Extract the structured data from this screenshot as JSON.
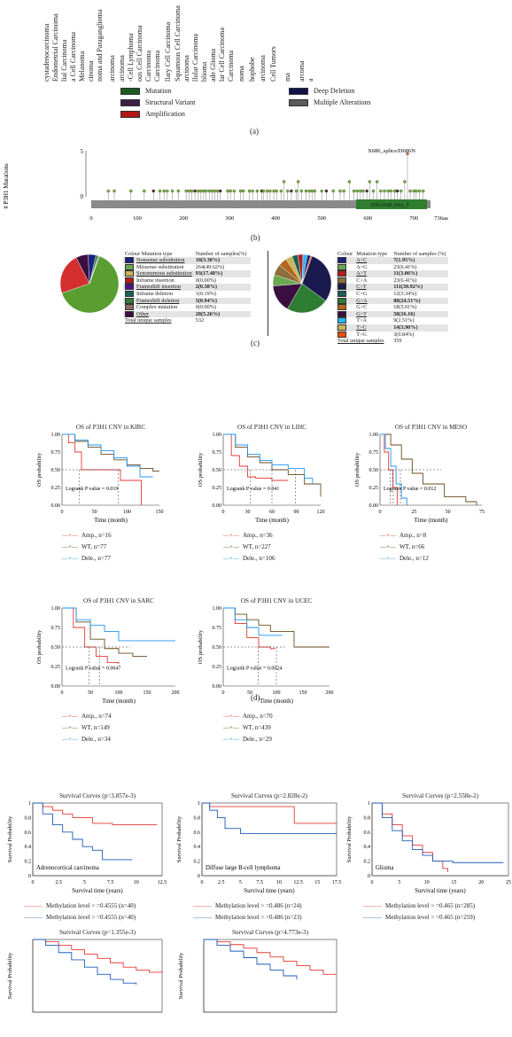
{
  "cancer_labels": [
    "cystadenocarcinoma",
    "Endometrial Carcinoma",
    "lial Carcinoma",
    "a Cell Carcinoma",
    "Melanoma",
    "cinoma",
    "noma and Paraganglioma",
    "arcinoma",
    "arcinoma",
    "-Cell Lymphoma",
    "ous Cell Carcinoma",
    "Carcinoma",
    "Carcinoma",
    "llary Cell Carcinoma",
    "Squamous Cell Carcinoma",
    "arcinoma",
    "llular Carcinoma",
    "blioma",
    "ade Glioma",
    "lar Cell Carcinoma",
    "Carcinoma",
    "noma",
    "hophobe",
    "arcinoma",
    "Cell Tumors",
    "ma",
    "arcoma",
    "a"
  ],
  "alteration_legend": [
    {
      "label": "Mutation",
      "color": "#1c5a22"
    },
    {
      "label": "Structural Variant",
      "color": "#3c1f46"
    },
    {
      "label": "Amplification",
      "color": "#b01818"
    },
    {
      "label": "Deep Deletion",
      "color": "#12124a"
    },
    {
      "label": "Multiple Alterations",
      "color": "#5a5a5a"
    }
  ],
  "panel_labels": {
    "a": "(a)",
    "b": "(b)",
    "c": "(c)",
    "d": "(d)"
  },
  "lollipop": {
    "ylabel": "# P3H1 Mutations",
    "annotation": "X686_splice/D686N",
    "domain": "2OG-FeII_Oxy_3",
    "yticks": [
      "5",
      "0"
    ],
    "xticks": [
      "0",
      "100",
      "200",
      "300",
      "400",
      "500",
      "600",
      "700",
      "736aa"
    ]
  },
  "table_left": {
    "headers": [
      "Colour Mutation type",
      "Number of samples(%)"
    ],
    "rows": [
      {
        "color": "#1a237e",
        "label": "Nonsense substitution",
        "value": "18(3.38%)"
      },
      {
        "color": "#6aa84f",
        "label": "Missense substitution",
        "value": "264(49.62%)"
      },
      {
        "color": "#c9b458",
        "label": "Synonymous substitution",
        "value": "93(17.48%)"
      },
      {
        "color": "#b71c1c",
        "label": "Inframe insertion",
        "value": "0(0.00%)"
      },
      {
        "color": "#4a148c",
        "label": "Frameshift insertion",
        "value": "2(0.38%)"
      },
      {
        "color": "#1b5e56",
        "label": "Inframe deletion",
        "value": "1(0.19%)"
      },
      {
        "color": "#2e7d32",
        "label": "Frameshift deletion",
        "value": "5(0.94%)"
      },
      {
        "color": "#8d6e63",
        "label": "Complex mutation",
        "value": "0(0.00%)"
      },
      {
        "color": "#3a0f3f",
        "label": "Other",
        "value": "28(5.26%)"
      }
    ],
    "total_label": "Total unique samples",
    "total": "532"
  },
  "table_right": {
    "headers": [
      "Colour",
      "Mutation type",
      "Number of samples (%)"
    ],
    "rows": [
      {
        "color": "#1a237e",
        "label": "A>C",
        "value": "7(1.95%)"
      },
      {
        "color": "#6aa84f",
        "label": "A>G",
        "value": "23(6.41%)"
      },
      {
        "color": "#b71c1c",
        "label": "A>T",
        "value": "11(3.06%)"
      },
      {
        "color": "#8d6e3c",
        "label": "C>A",
        "value": "23(6.41%)"
      },
      {
        "color": "#1a1a4e",
        "label": "C>T",
        "value": "111(30.92%)"
      },
      {
        "color": "#1b5e56",
        "label": "C>G",
        "value": "12(3.34%)"
      },
      {
        "color": "#2e7d32",
        "label": "G>A",
        "value": "88(24.51%)"
      },
      {
        "color": "#b5651d",
        "label": "G>C",
        "value": "18(5.01%)"
      },
      {
        "color": "#3a0f3f",
        "label": "G>T",
        "value": "58(16.16)"
      },
      {
        "color": "#29b6f6",
        "label": "T>A",
        "value": "9(2.51%)"
      },
      {
        "color": "#c9b458",
        "label": "T>C",
        "value": "14(3.90%)"
      },
      {
        "color": "#e65100",
        "label": "T>G",
        "value": "3(0.84%)"
      }
    ],
    "total_label": "Total unique samples",
    "total": "359"
  },
  "chart_data": [
    {
      "type": "pie",
      "title": "",
      "categories": [
        "Missense substitution",
        "Synonymous substitution",
        "Other",
        "Nonsense substitution",
        "Frameshift deletion",
        "Frameshift insertion",
        "Inframe deletion"
      ],
      "values": [
        264,
        93,
        28,
        18,
        5,
        2,
        1
      ]
    },
    {
      "type": "pie",
      "title": "",
      "categories": [
        "C>T",
        "G>A",
        "G>T",
        "A>G",
        "C>A",
        "G>C",
        "T>C",
        "C>G",
        "A>T",
        "T>A",
        "A>C",
        "T>G"
      ],
      "values": [
        111,
        88,
        58,
        23,
        23,
        18,
        14,
        12,
        11,
        9,
        7,
        3
      ]
    },
    {
      "type": "line",
      "title": "OS of P3H1 CNV in KIRC",
      "xlabel": "Time (month)",
      "ylabel": "OS probability",
      "pvalue": "Logrank P value = 0.019",
      "xticks": [
        "0",
        "50",
        "100",
        "150"
      ],
      "yticks": [
        "0.00",
        "0.25",
        "0.50",
        "0.75",
        "1.00"
      ],
      "series": [
        {
          "name": "Amp., n=16",
          "color": "#e53935",
          "x": [
            0,
            10,
            20,
            30,
            35,
            60,
            90,
            120,
            122
          ],
          "y": [
            1,
            0.88,
            0.75,
            0.5,
            0.5,
            0.5,
            0.35,
            0.35,
            0.0
          ]
        },
        {
          "name": "WT, n=77",
          "color": "#6b4a1e",
          "x": [
            0,
            20,
            40,
            60,
            80,
            100,
            120,
            140,
            150
          ],
          "y": [
            1,
            0.9,
            0.82,
            0.72,
            0.64,
            0.57,
            0.52,
            0.48,
            0.48
          ]
        },
        {
          "name": "Dele., n=77",
          "color": "#2196f3",
          "x": [
            0,
            20,
            40,
            60,
            80,
            100,
            120,
            140
          ],
          "y": [
            1,
            0.92,
            0.85,
            0.77,
            0.67,
            0.55,
            0.4,
            0.4
          ]
        }
      ]
    },
    {
      "type": "line",
      "title": "OS of P3H1 CNV in LIHC",
      "xlabel": "Time (month)",
      "ylabel": "OS probability",
      "pvalue": "Logrank P value = 0.041",
      "xticks": [
        "0",
        "30",
        "60",
        "90",
        "120"
      ],
      "yticks": [
        "0.00",
        "0.25",
        "0.50",
        "0.75",
        "1.00"
      ],
      "series": [
        {
          "name": "Amp., n=36",
          "color": "#e53935",
          "x": [
            0,
            10,
            20,
            30,
            40,
            60,
            80
          ],
          "y": [
            1,
            0.7,
            0.55,
            0.4,
            0.38,
            0.35,
            0.35
          ]
        },
        {
          "name": "WT, n=227",
          "color": "#6b4a1e",
          "x": [
            0,
            15,
            30,
            45,
            60,
            80,
            100,
            120
          ],
          "y": [
            1,
            0.82,
            0.68,
            0.6,
            0.5,
            0.43,
            0.3,
            0.12
          ]
        },
        {
          "name": "Dele., n=106",
          "color": "#2196f3",
          "x": [
            0,
            15,
            30,
            45,
            60,
            80,
            100,
            110
          ],
          "y": [
            1,
            0.85,
            0.72,
            0.63,
            0.57,
            0.52,
            0.38,
            0.3
          ]
        }
      ]
    },
    {
      "type": "line",
      "title": "OS of P3H1 CNV in MESO",
      "xlabel": "Time (month)",
      "ylabel": "OS probability",
      "pvalue": "Logrank P value = 0.012",
      "xticks": [
        "0",
        "25",
        "50",
        "75"
      ],
      "yticks": [
        "0.00",
        "0.25",
        "0.50",
        "0.75",
        "1.00"
      ],
      "series": [
        {
          "name": "Amp., n=8",
          "color": "#e53935",
          "x": [
            0,
            4,
            8,
            12,
            16
          ],
          "y": [
            1,
            0.75,
            0.5,
            0.25,
            0
          ]
        },
        {
          "name": "WT, n=66",
          "color": "#6b4a1e",
          "x": [
            0,
            10,
            20,
            30,
            40,
            60,
            80,
            90
          ],
          "y": [
            1,
            0.85,
            0.65,
            0.45,
            0.3,
            0.12,
            0.05,
            0.0
          ]
        },
        {
          "name": "Dele., n=12",
          "color": "#2196f3",
          "x": [
            0,
            5,
            10,
            15,
            20,
            25
          ],
          "y": [
            1,
            0.8,
            0.55,
            0.3,
            0.1,
            0.0
          ]
        }
      ]
    },
    {
      "type": "line",
      "title": "OS of P3H1 CNV in SARC",
      "xlabel": "Time (month)",
      "ylabel": "OS probability",
      "pvalue": "Logrank P value = 0.0047",
      "xticks": [
        "0",
        "50",
        "100",
        "150",
        "200"
      ],
      "yticks": [
        "0.00",
        "0.25",
        "0.50",
        "0.75",
        "1.00"
      ],
      "series": [
        {
          "name": "Amp., n=74",
          "color": "#e53935",
          "x": [
            0,
            20,
            40,
            60,
            80,
            100
          ],
          "y": [
            1,
            0.75,
            0.5,
            0.38,
            0.3,
            0.28
          ]
        },
        {
          "name": "WT, n=149",
          "color": "#6b4a1e",
          "x": [
            0,
            25,
            50,
            75,
            100,
            125,
            150
          ],
          "y": [
            1,
            0.82,
            0.6,
            0.48,
            0.42,
            0.38,
            0.38
          ]
        },
        {
          "name": "Dele., n=34",
          "color": "#2196f3",
          "x": [
            0,
            25,
            50,
            75,
            100,
            150,
            200
          ],
          "y": [
            1,
            0.85,
            0.78,
            0.7,
            0.58,
            0.58,
            0.58
          ]
        }
      ]
    },
    {
      "type": "line",
      "title": "OS of P3H1 CNV in UCEC",
      "xlabel": "Time (month)",
      "ylabel": "OS probability",
      "pvalue": "Logrank P value = 0.0024",
      "xticks": [
        "0",
        "50",
        "100",
        "150",
        "200"
      ],
      "yticks": [
        "0.00",
        "0.25",
        "0.50",
        "0.75",
        "1.00"
      ],
      "series": [
        {
          "name": "Amp., n=70",
          "color": "#e53935",
          "x": [
            0,
            25,
            50,
            75,
            100,
            110
          ],
          "y": [
            1,
            0.8,
            0.62,
            0.5,
            0.48,
            0.48
          ]
        },
        {
          "name": "WT, n=439",
          "color": "#6b4a1e",
          "x": [
            0,
            25,
            50,
            75,
            100,
            150,
            225
          ],
          "y": [
            1,
            0.92,
            0.85,
            0.78,
            0.7,
            0.5,
            0.5
          ]
        },
        {
          "name": "Dele., n=29",
          "color": "#2196f3",
          "x": [
            0,
            25,
            50,
            75,
            100,
            125
          ],
          "y": [
            1,
            0.85,
            0.75,
            0.65,
            0.65,
            0.65
          ]
        }
      ]
    },
    {
      "type": "line",
      "title": "Survival Curves (p=3.857e-3)",
      "xlabel": "Survival time (years)",
      "ylabel": "Survival Probability",
      "inset": "Adrenocortical carcinoma",
      "xticks": [
        "0",
        "2.5",
        "5",
        "7.5",
        "10",
        "12.5"
      ],
      "yticks": [
        "0",
        "0.2",
        "0.4",
        "0.6",
        "0.8",
        "1"
      ],
      "series": [
        {
          "name": "Methylation level > =0.4555 (n=40)",
          "color": "#e53935",
          "x": [
            0,
            1,
            2,
            3,
            4,
            6,
            8,
            10,
            12.5
          ],
          "y": [
            1,
            0.95,
            0.9,
            0.85,
            0.8,
            0.72,
            0.7,
            0.7,
            0.7
          ]
        },
        {
          "name": "Methylation level > =0.4555 (n=40)",
          "color": "#1e5bb8",
          "x": [
            0,
            1,
            2,
            3,
            4,
            5,
            6,
            7,
            10
          ],
          "y": [
            1,
            0.85,
            0.7,
            0.6,
            0.5,
            0.4,
            0.35,
            0.22,
            0.22
          ]
        }
      ]
    },
    {
      "type": "line",
      "title": "Survival Curves (p=2.828e-2)",
      "xlabel": "Survival time (years)",
      "ylabel": "Survival Probability",
      "inset": "Diffuse large B-cell lymphoma",
      "xticks": [
        "0",
        "2.5",
        "5",
        "7.5",
        "10",
        "12.5",
        "15",
        "17.5"
      ],
      "yticks": [
        "0",
        "0.2",
        "0.4",
        "0.6",
        "0.8",
        "1"
      ],
      "series": [
        {
          "name": "Methylation level > =0.486 (n=24)",
          "color": "#e53935",
          "x": [
            0,
            1,
            3,
            6,
            10,
            12,
            17.5
          ],
          "y": [
            1,
            0.95,
            0.95,
            0.95,
            0.95,
            0.72,
            0.72
          ]
        },
        {
          "name": "Methylation level > =0.486 (n=23)",
          "color": "#1e5bb8",
          "x": [
            0,
            1,
            2,
            3,
            5,
            10,
            17.5
          ],
          "y": [
            1,
            0.9,
            0.8,
            0.65,
            0.58,
            0.58,
            0.58
          ]
        }
      ]
    },
    {
      "type": "line",
      "title": "Survival Curves (p=2.558e-2)",
      "xlabel": "Survival time (years)",
      "ylabel": "Survival Probability",
      "inset": "Glioma",
      "xticks": [
        "0",
        "5",
        "10",
        "15",
        "20",
        "25"
      ],
      "yticks": [
        "0",
        "0.2",
        "0.4",
        "0.6",
        "0.8",
        "1"
      ],
      "series": [
        {
          "name": "Methylation level > =0.465 (n=285)",
          "color": "#e53935",
          "x": [
            0,
            2,
            4,
            6,
            8,
            10,
            12,
            14,
            15
          ],
          "y": [
            1,
            0.85,
            0.7,
            0.55,
            0.42,
            0.32,
            0.2,
            0.1,
            0.05
          ]
        },
        {
          "name": "Methylation level > =0.465 (n=259)",
          "color": "#1e5bb8",
          "x": [
            0,
            2,
            4,
            6,
            8,
            10,
            12,
            16,
            20,
            26
          ],
          "y": [
            1,
            0.8,
            0.62,
            0.48,
            0.36,
            0.28,
            0.2,
            0.18,
            0.18,
            0.18
          ]
        }
      ]
    },
    {
      "type": "line",
      "title": "Survival Curves (p=1.355e-3)",
      "xlabel": "",
      "ylabel": "Survival Probability",
      "xticks": [],
      "yticks": [],
      "series": [
        {
          "name": "",
          "color": "#e53935",
          "x": [
            0,
            2,
            4,
            6,
            8,
            10,
            12,
            14,
            16,
            18,
            20
          ],
          "y": [
            1,
            0.97,
            0.92,
            0.86,
            0.8,
            0.74,
            0.68,
            0.62,
            0.58,
            0.55,
            0.54
          ]
        },
        {
          "name": "",
          "color": "#1e5bb8",
          "x": [
            0,
            2,
            4,
            6,
            8,
            10,
            12,
            14,
            16
          ],
          "y": [
            1,
            0.92,
            0.82,
            0.72,
            0.62,
            0.52,
            0.45,
            0.4,
            0.38
          ]
        }
      ]
    },
    {
      "type": "line",
      "title": "Survival Curves (p=4.773e-3)",
      "xlabel": "",
      "ylabel": "Survival Probability",
      "xticks": [],
      "yticks": [],
      "series": [
        {
          "name": "",
          "color": "#e53935",
          "x": [
            0,
            2,
            4,
            6,
            8,
            10,
            12,
            14,
            16,
            18,
            20
          ],
          "y": [
            1,
            0.97,
            0.93,
            0.88,
            0.82,
            0.76,
            0.7,
            0.64,
            0.58,
            0.52,
            0.52
          ]
        },
        {
          "name": "",
          "color": "#1e5bb8",
          "x": [
            0,
            2,
            4,
            6,
            8,
            10,
            12,
            14
          ],
          "y": [
            1,
            0.92,
            0.84,
            0.75,
            0.66,
            0.58,
            0.5,
            0.45
          ]
        }
      ]
    }
  ]
}
